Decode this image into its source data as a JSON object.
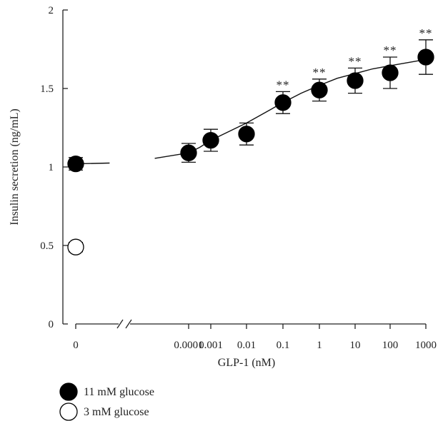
{
  "chart_data": {
    "type": "scatter",
    "title": "",
    "xlabel": "GLP-1 (nM)",
    "ylabel": "Insulin secretion (ng/mL)",
    "ylim": [
      0,
      2
    ],
    "y_ticks": [
      "0",
      "0.5",
      "1",
      "1.5",
      "2"
    ],
    "x_axis": "categorical, log-spaced doses with axis break after 0",
    "categories": [
      "0",
      "0.0001",
      "0.001",
      "0.01",
      "0.1",
      "1",
      "10",
      "100",
      "1000"
    ],
    "grid": false,
    "legend_position": "bottom-left",
    "series": [
      {
        "name": "11 mM glucose",
        "marker": "filled-circle",
        "color": "#000000",
        "x": [
          "0",
          "0.0001",
          "0.001",
          "0.01",
          "0.1",
          "1",
          "10",
          "100",
          "1000"
        ],
        "values": [
          1.02,
          1.09,
          1.17,
          1.21,
          1.41,
          1.49,
          1.55,
          1.6,
          1.7
        ],
        "error": [
          0.04,
          0.06,
          0.07,
          0.07,
          0.07,
          0.07,
          0.08,
          0.1,
          0.11
        ],
        "significance": [
          "",
          "",
          "",
          "",
          "**",
          "**",
          "**",
          "**",
          "**"
        ]
      },
      {
        "name": "3 mM glucose",
        "marker": "open-circle",
        "color": "#ffffff",
        "x": [
          "0"
        ],
        "values": [
          0.49
        ],
        "error": [
          0.03
        ],
        "significance": [
          ""
        ]
      }
    ],
    "fit_curve": "sigmoidal, broken at axis break",
    "fit_points": [
      [
        1,
        1.02
      ],
      [
        1.6,
        1.025
      ],
      [
        2.4,
        1.055
      ],
      [
        3,
        1.09
      ],
      [
        3.5,
        1.125
      ],
      [
        4,
        1.17
      ],
      [
        4.5,
        1.225
      ],
      [
        5,
        1.28
      ],
      [
        5.5,
        1.345
      ],
      [
        6,
        1.41
      ],
      [
        6.5,
        1.47
      ],
      [
        7,
        1.52
      ],
      [
        7.5,
        1.565
      ],
      [
        8,
        1.595
      ],
      [
        8.5,
        1.625
      ],
      [
        9,
        1.645
      ],
      [
        9.5,
        1.665
      ],
      [
        10,
        1.685
      ]
    ]
  }
}
